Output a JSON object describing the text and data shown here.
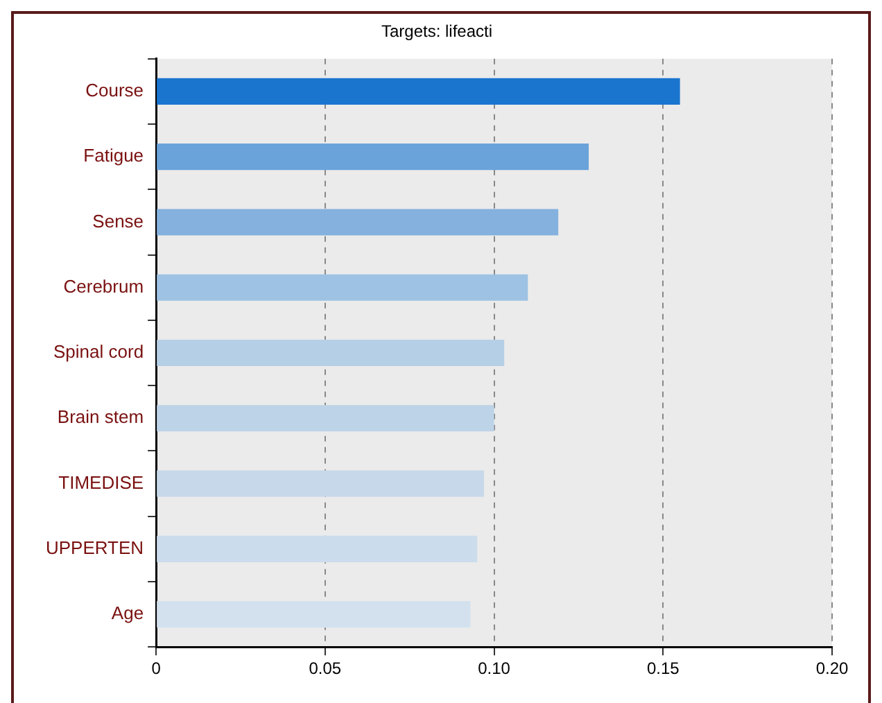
{
  "chart_data": {
    "type": "bar",
    "orientation": "horizontal",
    "title": "Targets: lifeacti",
    "categories": [
      "Course",
      "Fatigue",
      "Sense",
      "Cerebrum",
      "Spinal cord",
      "Brain stem",
      "TIMEDISE",
      "UPPERTEN",
      "Age"
    ],
    "values": [
      0.155,
      0.128,
      0.119,
      0.11,
      0.103,
      0.1,
      0.097,
      0.095,
      0.093
    ],
    "colors": [
      "#1a75cf",
      "#6aa3da",
      "#84b1de",
      "#9ec2e3",
      "#b5cfe6",
      "#bdd3e8",
      "#c6d8ea",
      "#cbdcec",
      "#d3e1ef"
    ],
    "xlim": [
      0,
      0.2
    ],
    "xticks": [
      0,
      0.05,
      {
        "value": 0.1,
        "label": "0.10"
      },
      0.15,
      {
        "value": 0.2,
        "label": "0.20"
      }
    ],
    "grid": "x",
    "legend": false
  }
}
